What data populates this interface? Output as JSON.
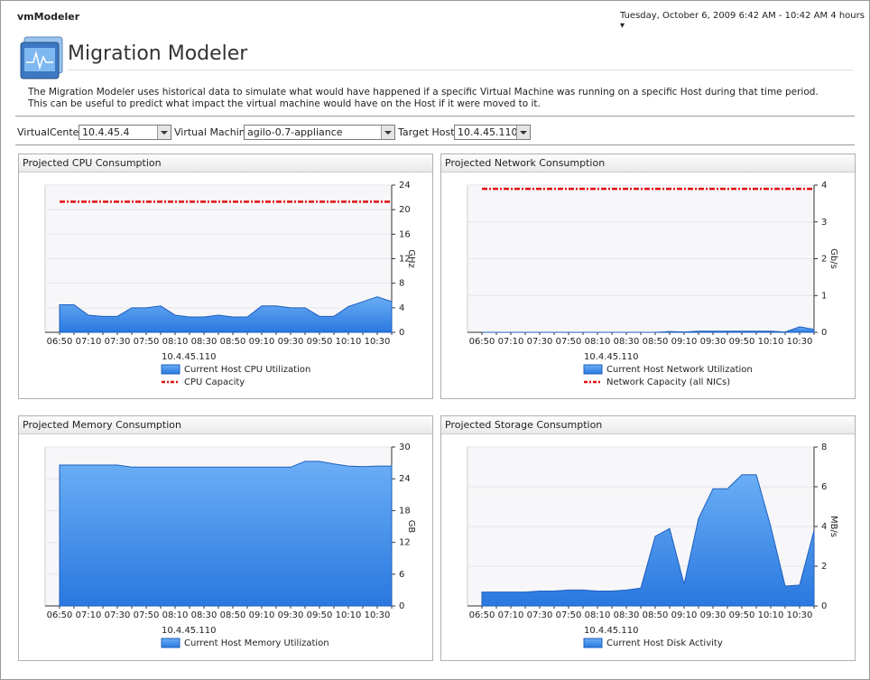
{
  "header": {
    "app": "vmModeler",
    "time_range": "Tuesday, October 6, 2009 6:42 AM - 10:42 AM 4 hours"
  },
  "page": {
    "title": "Migration Modeler",
    "description": "The Migration Modeler uses historical data to simulate what would have happened if a specific Virtual Machine was running on a specific Host during that time period. This can be useful to predict what impact the virtual machine would have on the Host if it were moved to it."
  },
  "filters": [
    {
      "label": "VirtualCenter",
      "value": "10.4.45.4"
    },
    {
      "label": "Virtual Machine",
      "value": "agilo-0.7-appliance"
    },
    {
      "label": "Target Host",
      "value": "10.4.45.110"
    }
  ],
  "chart_data": [
    {
      "type": "area",
      "title": "Projected CPU Consumption",
      "y_label": "GHz",
      "legend_title": "10.4.45.110",
      "categories": [
        "06:50",
        null,
        "07:10",
        null,
        "07:30",
        null,
        "07:50",
        null,
        "08:10",
        null,
        "08:30",
        null,
        "08:50",
        null,
        "09:10",
        null,
        "09:30",
        null,
        "09:50",
        null,
        "10:10",
        null,
        "10:30",
        null
      ],
      "ylim": [
        0,
        24
      ],
      "yticks": [
        0,
        4,
        8,
        12,
        16,
        20,
        24
      ],
      "grid": true,
      "series": [
        {
          "name": "Current Host CPU Utilization",
          "color": "#3a8ae8",
          "mark": "area",
          "values": [
            4.5,
            4.5,
            2.8,
            2.6,
            2.6,
            4.0,
            4.0,
            4.3,
            2.8,
            2.5,
            2.5,
            2.8,
            2.5,
            2.5,
            4.3,
            4.3,
            4.0,
            4.0,
            2.6,
            2.6,
            4.2,
            5.0,
            5.8,
            5.0
          ]
        },
        {
          "name": "CPU Capacity",
          "color": "#e01010",
          "mark": "dashed-line",
          "values": [
            21.3,
            21.3,
            21.3,
            21.3,
            21.3,
            21.3,
            21.3,
            21.3,
            21.3,
            21.3,
            21.3,
            21.3,
            21.3,
            21.3,
            21.3,
            21.3,
            21.3,
            21.3,
            21.3,
            21.3,
            21.3,
            21.3,
            21.3,
            21.3
          ]
        }
      ]
    },
    {
      "type": "area",
      "title": "Projected Network Consumption",
      "y_label": "Gb/s",
      "legend_title": "10.4.45.110",
      "categories": [
        "06:50",
        null,
        "07:10",
        null,
        "07:30",
        null,
        "07:50",
        null,
        "08:10",
        null,
        "08:30",
        null,
        "08:50",
        null,
        "09:10",
        null,
        "09:30",
        null,
        "09:50",
        null,
        "10:10",
        null,
        "10:30",
        null
      ],
      "ylim": [
        0,
        4
      ],
      "yticks": [
        0,
        1,
        2,
        3,
        4
      ],
      "grid": true,
      "series": [
        {
          "name": "Current Host Network Utilization",
          "color": "#3a8ae8",
          "mark": "area",
          "values": [
            0,
            0,
            0,
            0,
            0,
            0,
            0,
            0,
            0,
            0,
            0,
            0,
            0,
            0.02,
            0.01,
            0.03,
            0.03,
            0.03,
            0.03,
            0.03,
            0.03,
            0.01,
            0.15,
            0.08
          ]
        },
        {
          "name": "Network Capacity (all NICs)",
          "color": "#e01010",
          "mark": "dashed-line",
          "values": [
            3.9,
            3.9,
            3.9,
            3.9,
            3.9,
            3.9,
            3.9,
            3.9,
            3.9,
            3.9,
            3.9,
            3.9,
            3.9,
            3.9,
            3.9,
            3.9,
            3.9,
            3.9,
            3.9,
            3.9,
            3.9,
            3.9,
            3.9,
            3.9
          ]
        }
      ]
    },
    {
      "type": "area",
      "title": "Projected Memory Consumption",
      "y_label": "GB",
      "legend_title": "10.4.45.110",
      "categories": [
        "06:50",
        null,
        "07:10",
        null,
        "07:30",
        null,
        "07:50",
        null,
        "08:10",
        null,
        "08:30",
        null,
        "08:50",
        null,
        "09:10",
        null,
        "09:30",
        null,
        "09:50",
        null,
        "10:10",
        null,
        "10:30",
        null
      ],
      "ylim": [
        0,
        30
      ],
      "yticks": [
        0,
        6,
        12,
        18,
        24,
        30
      ],
      "grid": true,
      "series": [
        {
          "name": "Current Host Memory Utilization",
          "color": "#3a8ae8",
          "mark": "area",
          "values": [
            26.6,
            26.6,
            26.6,
            26.6,
            26.6,
            26.2,
            26.2,
            26.2,
            26.2,
            26.2,
            26.2,
            26.2,
            26.2,
            26.2,
            26.2,
            26.2,
            26.2,
            27.3,
            27.3,
            26.8,
            26.4,
            26.3,
            26.4,
            26.4
          ]
        }
      ]
    },
    {
      "type": "area",
      "title": "Projected Storage Consumption",
      "y_label": "MB/s",
      "legend_title": "10.4.45.110",
      "categories": [
        "06:50",
        null,
        "07:10",
        null,
        "07:30",
        null,
        "07:50",
        null,
        "08:10",
        null,
        "08:30",
        null,
        "08:50",
        null,
        "09:10",
        null,
        "09:30",
        null,
        "09:50",
        null,
        "10:10",
        null,
        "10:30",
        null
      ],
      "ylim": [
        0,
        8
      ],
      "yticks": [
        0,
        2,
        4,
        6,
        8
      ],
      "grid": true,
      "series": [
        {
          "name": "Current Host Disk Activity",
          "color": "#3a8ae8",
          "mark": "area",
          "values": [
            0.7,
            0.7,
            0.7,
            0.7,
            0.75,
            0.75,
            0.8,
            0.8,
            0.75,
            0.75,
            0.8,
            0.9,
            3.5,
            3.9,
            1.1,
            4.4,
            5.9,
            5.9,
            6.6,
            6.6,
            4.0,
            1.0,
            1.05,
            3.8
          ]
        }
      ]
    }
  ]
}
